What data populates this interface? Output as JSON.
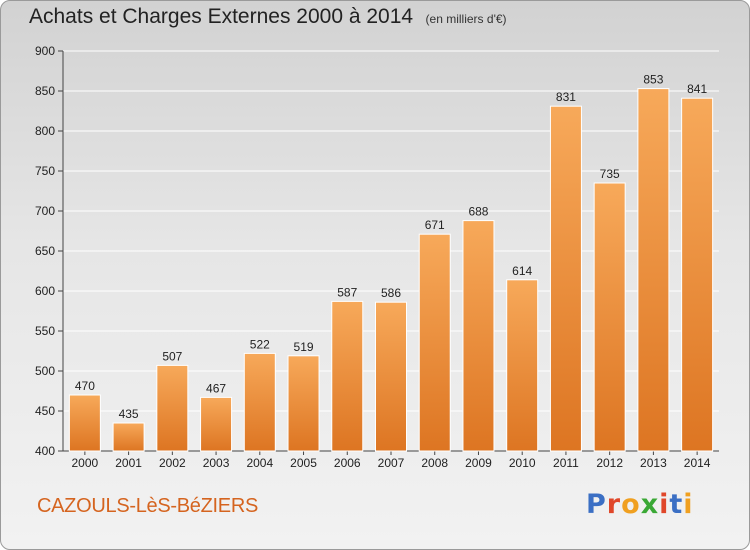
{
  "chart_data": {
    "type": "bar",
    "title": "Achats et Charges Externes 2000 à 2014",
    "subtitle": "(en milliers d'€)",
    "categories": [
      "2000",
      "2001",
      "2002",
      "2003",
      "2004",
      "2005",
      "2006",
      "2007",
      "2008",
      "2009",
      "2010",
      "2011",
      "2012",
      "2013",
      "2014"
    ],
    "values": [
      470,
      435,
      507,
      467,
      522,
      519,
      587,
      586,
      671,
      688,
      614,
      831,
      735,
      853,
      841
    ],
    "ylim": [
      400,
      900
    ],
    "yticks": [
      400,
      450,
      500,
      550,
      600,
      650,
      700,
      750,
      800,
      850,
      900
    ],
    "grid": true,
    "bar_color": "#f08a2a",
    "bar_color_light": "#f7a95a",
    "bar_color_dark": "#dd7522"
  },
  "location": "CAZOULS-LèS-BéZIERS",
  "logo": {
    "text": "Proxiti",
    "letter_colors": [
      "#3b6fc4",
      "#e0472a",
      "#f0a020",
      "#3aa835",
      "#e0472a",
      "#3b6fc4",
      "#f0a020"
    ]
  }
}
